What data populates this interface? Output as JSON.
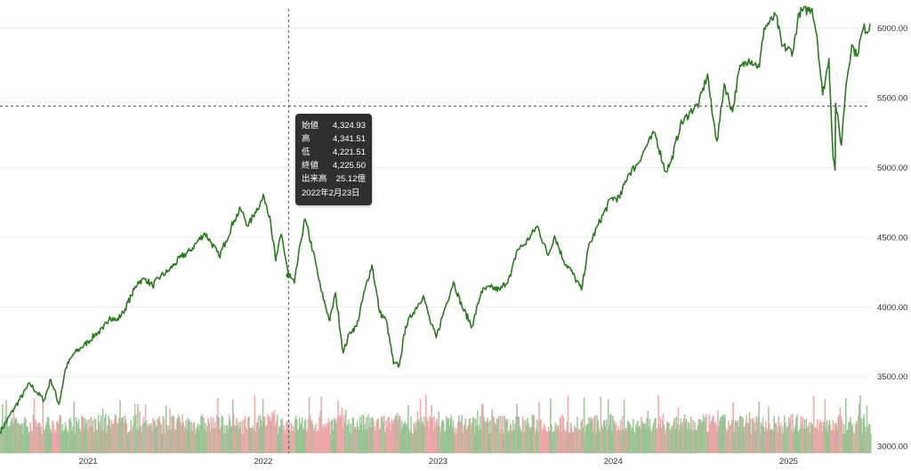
{
  "chart_data": {
    "type": "line",
    "title": "",
    "xlabel": "",
    "ylabel": "",
    "ylim": [
      2950,
      6150
    ],
    "y_ticks": [
      "3000.00",
      "3500.00",
      "4000.00",
      "4500.00",
      "5000.00",
      "5500.00",
      "6000.00"
    ],
    "y_tick_values": [
      3000,
      3500,
      4000,
      4500,
      5000,
      5500,
      6000
    ],
    "x_tick_labels": [
      "2021",
      "2022",
      "2023",
      "2024",
      "2025"
    ],
    "x_tick_values": [
      "2021-01-01",
      "2022-01-01",
      "2023-01-01",
      "2024-01-01",
      "2025-01-01"
    ],
    "x_range": [
      "2020-07-01",
      "2025-06-20"
    ],
    "grid": true,
    "line_color": "#2b7a1f",
    "volume_up_color": "#8fbe8a",
    "volume_down_color": "#e8a0a0",
    "series": [
      {
        "values": [
          [
            "2020-07-01",
            3100
          ],
          [
            "2020-08-01",
            3280
          ],
          [
            "2020-09-01",
            3450
          ],
          [
            "2020-09-15",
            3390
          ],
          [
            "2020-10-01",
            3330
          ],
          [
            "2020-10-15",
            3480
          ],
          [
            "2020-11-01",
            3300
          ],
          [
            "2020-11-15",
            3560
          ],
          [
            "2020-12-01",
            3660
          ],
          [
            "2020-12-15",
            3700
          ],
          [
            "2021-01-01",
            3750
          ],
          [
            "2021-01-15",
            3800
          ],
          [
            "2021-02-01",
            3840
          ],
          [
            "2021-02-15",
            3930
          ],
          [
            "2021-03-01",
            3900
          ],
          [
            "2021-03-15",
            3960
          ],
          [
            "2021-04-01",
            4080
          ],
          [
            "2021-04-15",
            4180
          ],
          [
            "2021-05-01",
            4200
          ],
          [
            "2021-05-15",
            4150
          ],
          [
            "2021-06-01",
            4220
          ],
          [
            "2021-06-15",
            4250
          ],
          [
            "2021-07-01",
            4310
          ],
          [
            "2021-07-15",
            4360
          ],
          [
            "2021-08-01",
            4400
          ],
          [
            "2021-08-15",
            4460
          ],
          [
            "2021-09-01",
            4530
          ],
          [
            "2021-09-15",
            4460
          ],
          [
            "2021-10-01",
            4360
          ],
          [
            "2021-10-15",
            4470
          ],
          [
            "2021-11-01",
            4620
          ],
          [
            "2021-11-15",
            4700
          ],
          [
            "2021-12-01",
            4580
          ],
          [
            "2021-12-15",
            4680
          ],
          [
            "2022-01-03",
            4790
          ],
          [
            "2022-01-15",
            4650
          ],
          [
            "2022-01-27",
            4330
          ],
          [
            "2022-02-08",
            4520
          ],
          [
            "2022-02-23",
            4225
          ],
          [
            "2022-03-07",
            4170
          ],
          [
            "2022-03-20",
            4460
          ],
          [
            "2022-03-29",
            4630
          ],
          [
            "2022-04-15",
            4400
          ],
          [
            "2022-05-01",
            4130
          ],
          [
            "2022-05-20",
            3900
          ],
          [
            "2022-06-01",
            4100
          ],
          [
            "2022-06-17",
            3670
          ],
          [
            "2022-07-01",
            3820
          ],
          [
            "2022-07-15",
            3860
          ],
          [
            "2022-08-01",
            4120
          ],
          [
            "2022-08-16",
            4300
          ],
          [
            "2022-09-01",
            3960
          ],
          [
            "2022-09-15",
            3900
          ],
          [
            "2022-09-30",
            3590
          ],
          [
            "2022-10-12",
            3580
          ],
          [
            "2022-10-25",
            3860
          ],
          [
            "2022-11-10",
            3960
          ],
          [
            "2022-12-01",
            4080
          ],
          [
            "2022-12-15",
            3900
          ],
          [
            "2022-12-28",
            3780
          ],
          [
            "2023-01-15",
            3990
          ],
          [
            "2023-02-02",
            4180
          ],
          [
            "2023-02-20",
            4000
          ],
          [
            "2023-03-13",
            3860
          ],
          [
            "2023-04-01",
            4110
          ],
          [
            "2023-04-20",
            4140
          ],
          [
            "2023-05-10",
            4120
          ],
          [
            "2023-06-01",
            4220
          ],
          [
            "2023-06-15",
            4410
          ],
          [
            "2023-07-01",
            4450
          ],
          [
            "2023-07-27",
            4580
          ],
          [
            "2023-08-18",
            4370
          ],
          [
            "2023-09-01",
            4510
          ],
          [
            "2023-09-20",
            4330
          ],
          [
            "2023-10-05",
            4260
          ],
          [
            "2023-10-27",
            4120
          ],
          [
            "2023-11-10",
            4420
          ],
          [
            "2023-12-01",
            4590
          ],
          [
            "2023-12-28",
            4780
          ],
          [
            "2024-01-15",
            4780
          ],
          [
            "2024-02-01",
            4950
          ],
          [
            "2024-02-20",
            5020
          ],
          [
            "2024-03-10",
            5150
          ],
          [
            "2024-03-28",
            5250
          ],
          [
            "2024-04-19",
            4970
          ],
          [
            "2024-05-01",
            5040
          ],
          [
            "2024-05-20",
            5300
          ],
          [
            "2024-06-10",
            5400
          ],
          [
            "2024-06-28",
            5460
          ],
          [
            "2024-07-16",
            5670
          ],
          [
            "2024-07-25",
            5400
          ],
          [
            "2024-08-05",
            5190
          ],
          [
            "2024-08-20",
            5600
          ],
          [
            "2024-09-06",
            5400
          ],
          [
            "2024-09-20",
            5700
          ],
          [
            "2024-10-10",
            5780
          ],
          [
            "2024-11-01",
            5720
          ],
          [
            "2024-11-11",
            6000
          ],
          [
            "2024-12-06",
            6090
          ],
          [
            "2024-12-18",
            5870
          ],
          [
            "2025-01-10",
            5830
          ],
          [
            "2025-01-23",
            6110
          ],
          [
            "2025-02-19",
            6140
          ],
          [
            "2025-03-01",
            5950
          ],
          [
            "2025-03-13",
            5520
          ],
          [
            "2025-03-26",
            5780
          ],
          [
            "2025-04-04",
            5070
          ],
          [
            "2025-04-08",
            4980
          ],
          [
            "2025-04-09",
            5460
          ],
          [
            "2025-04-21",
            5160
          ],
          [
            "2025-05-01",
            5600
          ],
          [
            "2025-05-13",
            5880
          ],
          [
            "2025-05-23",
            5800
          ],
          [
            "2025-06-06",
            6000
          ],
          [
            "2025-06-18",
            5980
          ],
          [
            "2025-06-20",
            6030
          ]
        ]
      }
    ],
    "crosshair": {
      "date": "2022-02-23",
      "close": 4225.5,
      "level": 5440
    },
    "tooltip": {
      "rows": [
        {
          "label": "始値",
          "value": "4,324.93"
        },
        {
          "label": "高",
          "value": "4,341.51"
        },
        {
          "label": "低",
          "value": "4,221.51"
        },
        {
          "label": "終値",
          "value": "4,225.50"
        },
        {
          "label": "出来高",
          "value": "25.12億"
        }
      ],
      "date": "2022年2月23日"
    }
  }
}
